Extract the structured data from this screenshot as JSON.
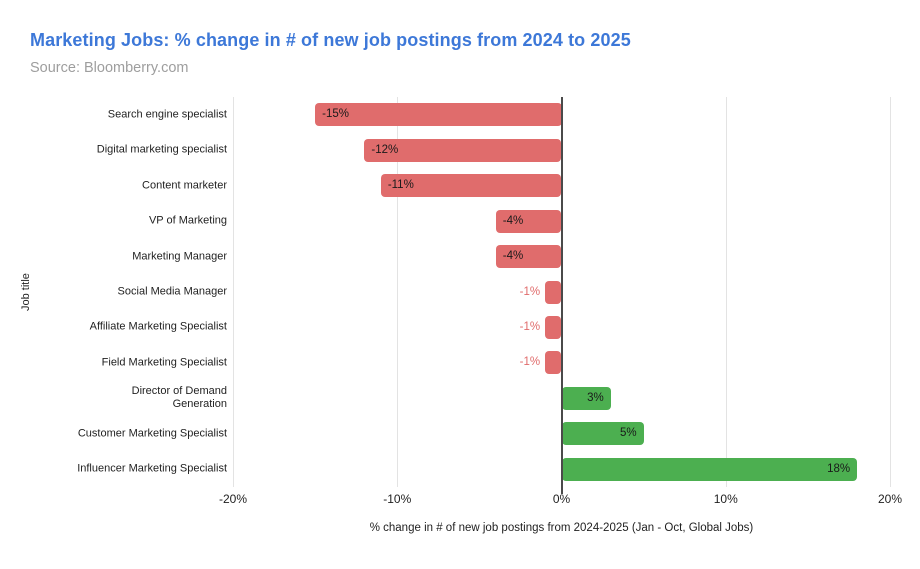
{
  "header": {
    "title": "Marketing Jobs: % change in # of new job postings from 2024 to 2025",
    "subtitle": "Source: Bloomberry.com"
  },
  "chart_data": {
    "type": "bar",
    "orientation": "horizontal",
    "title": "Marketing Jobs: % change in # of new job postings from 2024 to 2025",
    "subtitle": "Source: Bloomberry.com",
    "categories": [
      "Search engine specialist",
      "Digital marketing specialist",
      "Content marketer",
      "VP of Marketing",
      "Marketing Manager",
      "Social Media Manager",
      "Affiliate Marketing Specialist",
      "Field Marketing Specialist",
      "Director of Demand\nGeneration",
      "Customer Marketing Specialist",
      "Influencer Marketing Specialist"
    ],
    "values": [
      -15,
      -12,
      -11,
      -4,
      -4,
      -1,
      -1,
      -1,
      3,
      5,
      18
    ],
    "bar_labels": [
      "-15%",
      "-12%",
      "-11%",
      "-4%",
      "-4%",
      "-1%",
      "-1%",
      "-1%",
      "3%",
      "5%",
      "18%"
    ],
    "xlabel": "% change in # of new job postings from 2024-2025 (Jan - Oct, Global Jobs)",
    "ylabel": "Job title",
    "xlim": [
      -20,
      20
    ],
    "x_ticks": [
      {
        "value": -20,
        "label": "-20%"
      },
      {
        "value": -10,
        "label": "-10%"
      },
      {
        "value": 0,
        "label": "0%"
      },
      {
        "value": 10,
        "label": "10%"
      },
      {
        "value": 20,
        "label": "20%"
      }
    ],
    "grid": "vertical-only",
    "legend": "none",
    "colors": {
      "negative_bar": "#E06C6C",
      "positive_bar": "#4CAF50",
      "value_label_inside": "#1A1A1A",
      "value_label_outside": "#E06C6C",
      "gridline": "#E3E3E3",
      "zero_line": "#4A4A4A",
      "title": "#3D78D8",
      "subtitle": "#9E9E9E",
      "axis_text": "#1F1F1F"
    }
  }
}
